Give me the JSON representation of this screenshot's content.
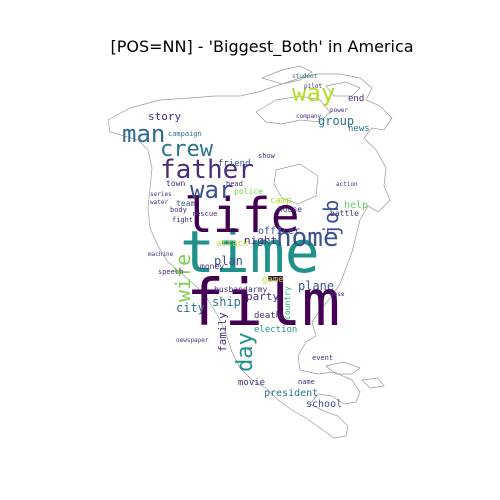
{
  "figure": {
    "title": "[POS=NN] - 'Biggest_Both' in America"
  },
  "palette": [
    "#440154",
    "#3b528b",
    "#21918c",
    "#5ec962",
    "#b5de2b",
    "#31688e",
    "#472d7b",
    "#2c728e",
    "#27ad81",
    "#7ad151"
  ],
  "words": [
    {
      "text": "time",
      "color": "#21918c"
    },
    {
      "text": "film",
      "color": "#440154"
    },
    {
      "text": "life",
      "color": "#440154"
    },
    {
      "text": "home",
      "color": "#3b528b"
    },
    {
      "text": "father",
      "color": "#472d7b"
    },
    {
      "text": "war",
      "color": "#3b528b"
    },
    {
      "text": "man",
      "color": "#31688e"
    },
    {
      "text": "crew",
      "color": "#2c728e"
    },
    {
      "text": "way",
      "color": "#b5de2b"
    },
    {
      "text": "job",
      "color": "#3b528b"
    },
    {
      "text": "wife",
      "color": "#7ad151"
    },
    {
      "text": "day",
      "color": "#21918c"
    },
    {
      "text": "plan",
      "color": "#3b528b"
    },
    {
      "text": "city",
      "color": "#31688e"
    },
    {
      "text": "ship",
      "color": "#2c728e"
    },
    {
      "text": "party",
      "color": "#472d7b"
    },
    {
      "text": "plane",
      "color": "#3b528b"
    },
    {
      "text": "night",
      "color": "#472d7b"
    },
    {
      "text": "officer",
      "color": "#3b528b"
    },
    {
      "text": "family",
      "color": "#472d7b"
    },
    {
      "text": "school",
      "color": "#3b528b"
    },
    {
      "text": "president",
      "color": "#2c728e"
    },
    {
      "text": "movie",
      "color": "#472d7b"
    },
    {
      "text": "story",
      "color": "#472d7b"
    },
    {
      "text": "group",
      "color": "#2c728e"
    },
    {
      "text": "friend",
      "color": "#3b528b"
    },
    {
      "text": "help",
      "color": "#5ec962"
    },
    {
      "text": "election",
      "color": "#21918c"
    },
    {
      "text": "death",
      "color": "#472d7b"
    },
    {
      "text": "attack",
      "color": "#b5de2b"
    },
    {
      "text": "money",
      "color": "#472d7b"
    },
    {
      "text": "army",
      "color": "#472d7b"
    },
    {
      "text": "husband",
      "color": "#472d7b"
    },
    {
      "text": "team",
      "color": "#3b528b"
    },
    {
      "text": "town",
      "color": "#472d7b"
    },
    {
      "text": "police",
      "color": "#7ad151"
    },
    {
      "text": "battle",
      "color": "#472d7b"
    },
    {
      "text": "house",
      "color": "#472d7b"
    },
    {
      "text": "news",
      "color": "#2c728e"
    },
    {
      "text": "end",
      "color": "#472d7b"
    },
    {
      "text": "country",
      "color": "#27ad81"
    },
    {
      "text": "game",
      "color": "#b5de2b"
    },
    {
      "text": "camp",
      "color": "#b5de2b"
    },
    {
      "text": "speech",
      "color": "#472d7b"
    },
    {
      "text": "body",
      "color": "#472d7b"
    },
    {
      "text": "campaign",
      "color": "#2c728e"
    },
    {
      "text": "fight",
      "color": "#472d7b"
    },
    {
      "text": "head",
      "color": "#472d7b"
    },
    {
      "text": "show",
      "color": "#472d7b"
    },
    {
      "text": "event",
      "color": "#472d7b"
    },
    {
      "text": "name",
      "color": "#472d7b"
    },
    {
      "text": "student",
      "color": "#2c728e"
    },
    {
      "text": "pilot",
      "color": "#472d7b"
    },
    {
      "text": "machine",
      "color": "#472d7b"
    },
    {
      "text": "newspaper",
      "color": "#472d7b"
    },
    {
      "text": "series",
      "color": "#472d7b"
    },
    {
      "text": "action",
      "color": "#472d7b"
    },
    {
      "text": "power",
      "color": "#472d7b"
    },
    {
      "text": "base",
      "color": "#472d7b"
    },
    {
      "text": "rescue",
      "color": "#472d7b"
    },
    {
      "text": "water",
      "color": "#472d7b"
    },
    {
      "text": "company",
      "color": "#472d7b"
    }
  ]
}
